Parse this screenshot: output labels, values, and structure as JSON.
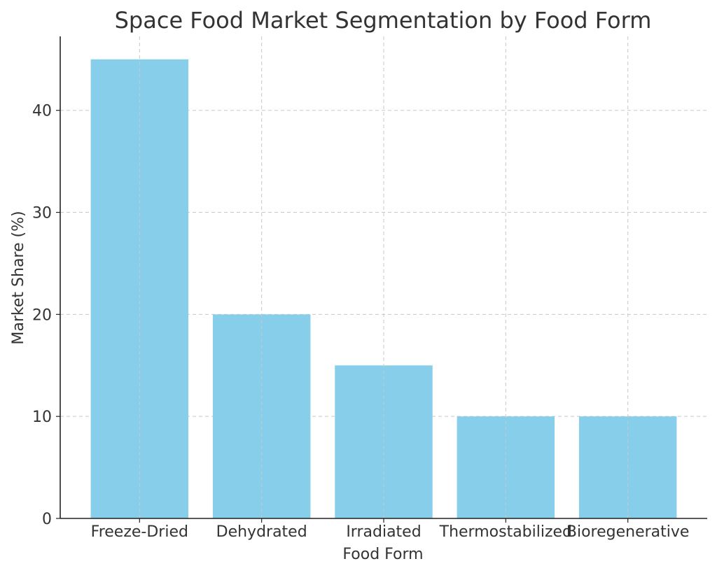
{
  "chart_data": {
    "type": "bar",
    "title": "Space Food Market Segmentation by Food Form",
    "xlabel": "Food Form",
    "ylabel": "Market Share (%)",
    "categories": [
      "Freeze-Dried",
      "Dehydrated",
      "Irradiated",
      "Thermostabilized",
      "Bioregenerative"
    ],
    "values": [
      45,
      20,
      15,
      10,
      10
    ],
    "ylim": [
      0,
      47.25
    ],
    "yticks": [
      0,
      10,
      20,
      30,
      40
    ],
    "ytick_labels": [
      "0",
      "10",
      "20",
      "30",
      "40"
    ],
    "grid": true,
    "bar_color": "#87CEEB"
  }
}
